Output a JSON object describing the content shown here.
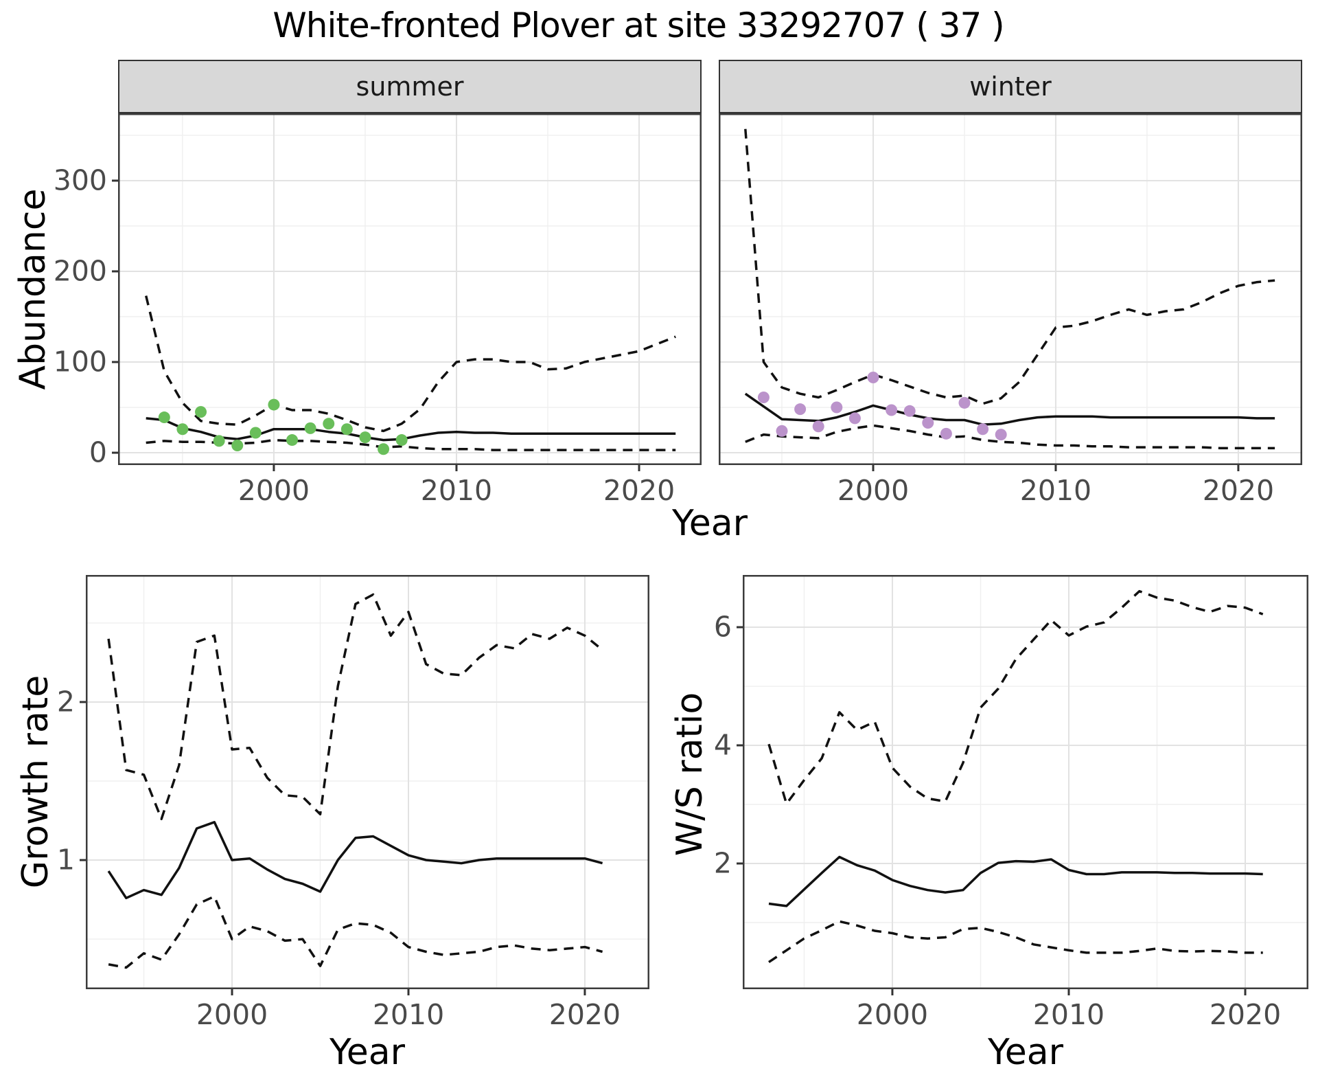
{
  "title": "White-fronted Plover at site 33292707 ( 37 )",
  "labels": {
    "year": "Year",
    "abundance": "Abundance",
    "growth_rate": "Growth rate",
    "ws_ratio": "W/S ratio"
  },
  "colors": {
    "line": "#111111",
    "grid_major": "#E2E2E2",
    "grid_minor": "#EFEFEF",
    "border": "#3c3c3c",
    "tick_mark": "#333333",
    "strip_bg": "#D8D8D8",
    "tick_text": "#4a4a4a",
    "summer_points": "#69BE5A",
    "winter_points": "#BB93CB"
  },
  "chart_data": [
    {
      "id": "summer",
      "type": "line",
      "facet_label": "summer",
      "xlabel": "Year",
      "ylabel": "Abundance",
      "x_domain": [
        1991.47,
        2023.42
      ],
      "y_domain": [
        -13.6,
        374.2
      ],
      "x_ticks": [
        2000,
        2010,
        2020
      ],
      "x_minor": [
        1995,
        2005,
        2015
      ],
      "y_ticks": [
        0,
        100,
        200,
        300
      ],
      "y_minor": [
        50,
        150,
        250,
        350
      ],
      "show_y_tick_labels": true,
      "series": [
        {
          "name": "upper-95ci",
          "kind": "line",
          "dash": true,
          "start_year": 1993,
          "values": [
            173,
            90,
            55,
            35,
            32,
            31,
            41,
            53,
            47,
            47,
            43,
            36,
            28,
            24,
            32,
            48,
            78,
            100,
            103,
            103,
            100,
            100,
            92,
            93,
            100,
            104,
            108,
            112,
            120,
            128
          ]
        },
        {
          "name": "median",
          "kind": "line",
          "dash": false,
          "start_year": 1993,
          "values": [
            38,
            36,
            27,
            23,
            17,
            15,
            19,
            26,
            26,
            26,
            23,
            21,
            17,
            14,
            15,
            19,
            22,
            23,
            22,
            22,
            21,
            21,
            21,
            21,
            21,
            21,
            21,
            21,
            21,
            21
          ]
        },
        {
          "name": "lower-95ci",
          "kind": "line",
          "dash": true,
          "start_year": 1993,
          "values": [
            11,
            13,
            12,
            12,
            11,
            10,
            11,
            14,
            13,
            13,
            12,
            11,
            9,
            6,
            7,
            5,
            4,
            4,
            4,
            3,
            3,
            3,
            3,
            3,
            3,
            3,
            3,
            3,
            3,
            3
          ]
        },
        {
          "name": "observed-counts",
          "kind": "points",
          "color": "#69BE5A",
          "start_year": 1994,
          "values": [
            39,
            26,
            45,
            13,
            8,
            22,
            53,
            14,
            27,
            32,
            26,
            17,
            4,
            14
          ]
        }
      ]
    },
    {
      "id": "winter",
      "type": "line",
      "facet_label": "winter",
      "xlabel": "Year",
      "ylabel": "Abundance",
      "x_domain": [
        1991.54,
        2023.5
      ],
      "y_domain": [
        -13.6,
        374.2
      ],
      "x_ticks": [
        2000,
        2010,
        2020
      ],
      "x_minor": [
        1995,
        2005,
        2015
      ],
      "y_ticks": [
        0,
        100,
        200,
        300
      ],
      "y_minor": [
        50,
        150,
        250,
        350
      ],
      "show_y_tick_labels": false,
      "series": [
        {
          "name": "upper-95ci",
          "kind": "line",
          "dash": true,
          "start_year": 1993,
          "values": [
            357,
            100,
            72,
            65,
            61,
            69,
            78,
            86,
            80,
            73,
            66,
            61,
            63,
            54,
            60,
            78,
            108,
            138,
            140,
            145,
            152,
            158,
            152,
            156,
            158,
            166,
            176,
            184,
            188,
            190
          ]
        },
        {
          "name": "median",
          "kind": "line",
          "dash": false,
          "start_year": 1993,
          "values": [
            65,
            51,
            37,
            36,
            35,
            39,
            45,
            52,
            47,
            42,
            38,
            36,
            36,
            31,
            32,
            36,
            39,
            40,
            40,
            40,
            39,
            39,
            39,
            39,
            39,
            39,
            39,
            39,
            38,
            38
          ]
        },
        {
          "name": "lower-95ci",
          "kind": "line",
          "dash": true,
          "start_year": 1993,
          "values": [
            12,
            20,
            18,
            17,
            16,
            23,
            27,
            30,
            27,
            24,
            20,
            17,
            18,
            14,
            12,
            11,
            9,
            8,
            8,
            7,
            7,
            6,
            6,
            6,
            6,
            6,
            5,
            5,
            5,
            5
          ]
        },
        {
          "name": "observed-counts",
          "kind": "points",
          "color": "#BB93CB",
          "start_year": 1994,
          "values": [
            61,
            24,
            48,
            29,
            50,
            38,
            83,
            47,
            46,
            33,
            21,
            55,
            26,
            20
          ]
        }
      ]
    },
    {
      "id": "growth_rate",
      "type": "line",
      "facet_label": "",
      "xlabel": "Year",
      "ylabel": "Growth rate",
      "x_domain": [
        1991.71,
        2023.66
      ],
      "y_domain": [
        0.183,
        2.804
      ],
      "x_ticks": [
        2000,
        2010,
        2020
      ],
      "x_minor": [
        1995,
        2005,
        2015
      ],
      "y_ticks": [
        1,
        2
      ],
      "y_minor": [
        0.5,
        1.5,
        2.5
      ],
      "show_y_tick_labels": true,
      "series": [
        {
          "name": "upper-95ci",
          "kind": "line",
          "dash": true,
          "start_year": 1993,
          "values": [
            2.4,
            1.57,
            1.54,
            1.26,
            1.6,
            2.38,
            2.42,
            1.7,
            1.71,
            1.52,
            1.41,
            1.4,
            1.29,
            2.1,
            2.62,
            2.68,
            2.42,
            2.57,
            2.24,
            2.18,
            2.17,
            2.28,
            2.36,
            2.34,
            2.43,
            2.4,
            2.47,
            2.42,
            2.33
          ]
        },
        {
          "name": "median",
          "kind": "line",
          "dash": false,
          "start_year": 1993,
          "values": [
            0.93,
            0.76,
            0.81,
            0.78,
            0.95,
            1.2,
            1.24,
            1.0,
            1.01,
            0.94,
            0.88,
            0.85,
            0.8,
            1.0,
            1.14,
            1.15,
            1.09,
            1.03,
            1.0,
            0.99,
            0.98,
            1.0,
            1.01,
            1.01,
            1.01,
            1.01,
            1.01,
            1.01,
            0.98
          ]
        },
        {
          "name": "lower-95ci",
          "kind": "line",
          "dash": true,
          "start_year": 1993,
          "values": [
            0.34,
            0.32,
            0.41,
            0.37,
            0.53,
            0.72,
            0.77,
            0.5,
            0.58,
            0.55,
            0.49,
            0.5,
            0.33,
            0.56,
            0.6,
            0.59,
            0.54,
            0.45,
            0.42,
            0.4,
            0.41,
            0.42,
            0.45,
            0.46,
            0.44,
            0.43,
            0.44,
            0.45,
            0.42
          ]
        }
      ]
    },
    {
      "id": "ws_ratio",
      "type": "line",
      "facet_label": "",
      "xlabel": "Year",
      "ylabel": "W/S ratio",
      "x_domain": [
        1991.52,
        2023.58
      ],
      "y_domain": [
        -0.128,
        6.884
      ],
      "x_ticks": [
        2000,
        2010,
        2020
      ],
      "x_minor": [
        1995,
        2005,
        2015
      ],
      "y_ticks": [
        2,
        4,
        6
      ],
      "y_minor": [
        1,
        3,
        5
      ],
      "show_y_tick_labels": true,
      "series": [
        {
          "name": "upper-95ci",
          "kind": "line",
          "dash": true,
          "start_year": 1993,
          "values": [
            4.02,
            3.01,
            3.41,
            3.78,
            4.56,
            4.26,
            4.4,
            3.62,
            3.3,
            3.1,
            3.05,
            3.7,
            4.64,
            4.96,
            5.46,
            5.79,
            6.12,
            5.86,
            6.01,
            6.08,
            6.33,
            6.61,
            6.5,
            6.45,
            6.34,
            6.26,
            6.36,
            6.33,
            6.22
          ]
        },
        {
          "name": "median",
          "kind": "line",
          "dash": false,
          "start_year": 1993,
          "values": [
            1.32,
            1.28,
            1.56,
            1.84,
            2.11,
            1.97,
            1.88,
            1.72,
            1.62,
            1.55,
            1.51,
            1.55,
            1.84,
            2.01,
            2.04,
            2.03,
            2.07,
            1.89,
            1.82,
            1.82,
            1.85,
            1.85,
            1.85,
            1.84,
            1.84,
            1.83,
            1.83,
            1.83,
            1.82
          ]
        },
        {
          "name": "lower-95ci",
          "kind": "line",
          "dash": true,
          "start_year": 1993,
          "values": [
            0.33,
            0.53,
            0.73,
            0.87,
            1.02,
            0.95,
            0.86,
            0.82,
            0.75,
            0.73,
            0.75,
            0.89,
            0.91,
            0.84,
            0.75,
            0.63,
            0.58,
            0.53,
            0.49,
            0.49,
            0.49,
            0.52,
            0.56,
            0.52,
            0.51,
            0.52,
            0.51,
            0.49,
            0.49
          ]
        }
      ]
    }
  ]
}
